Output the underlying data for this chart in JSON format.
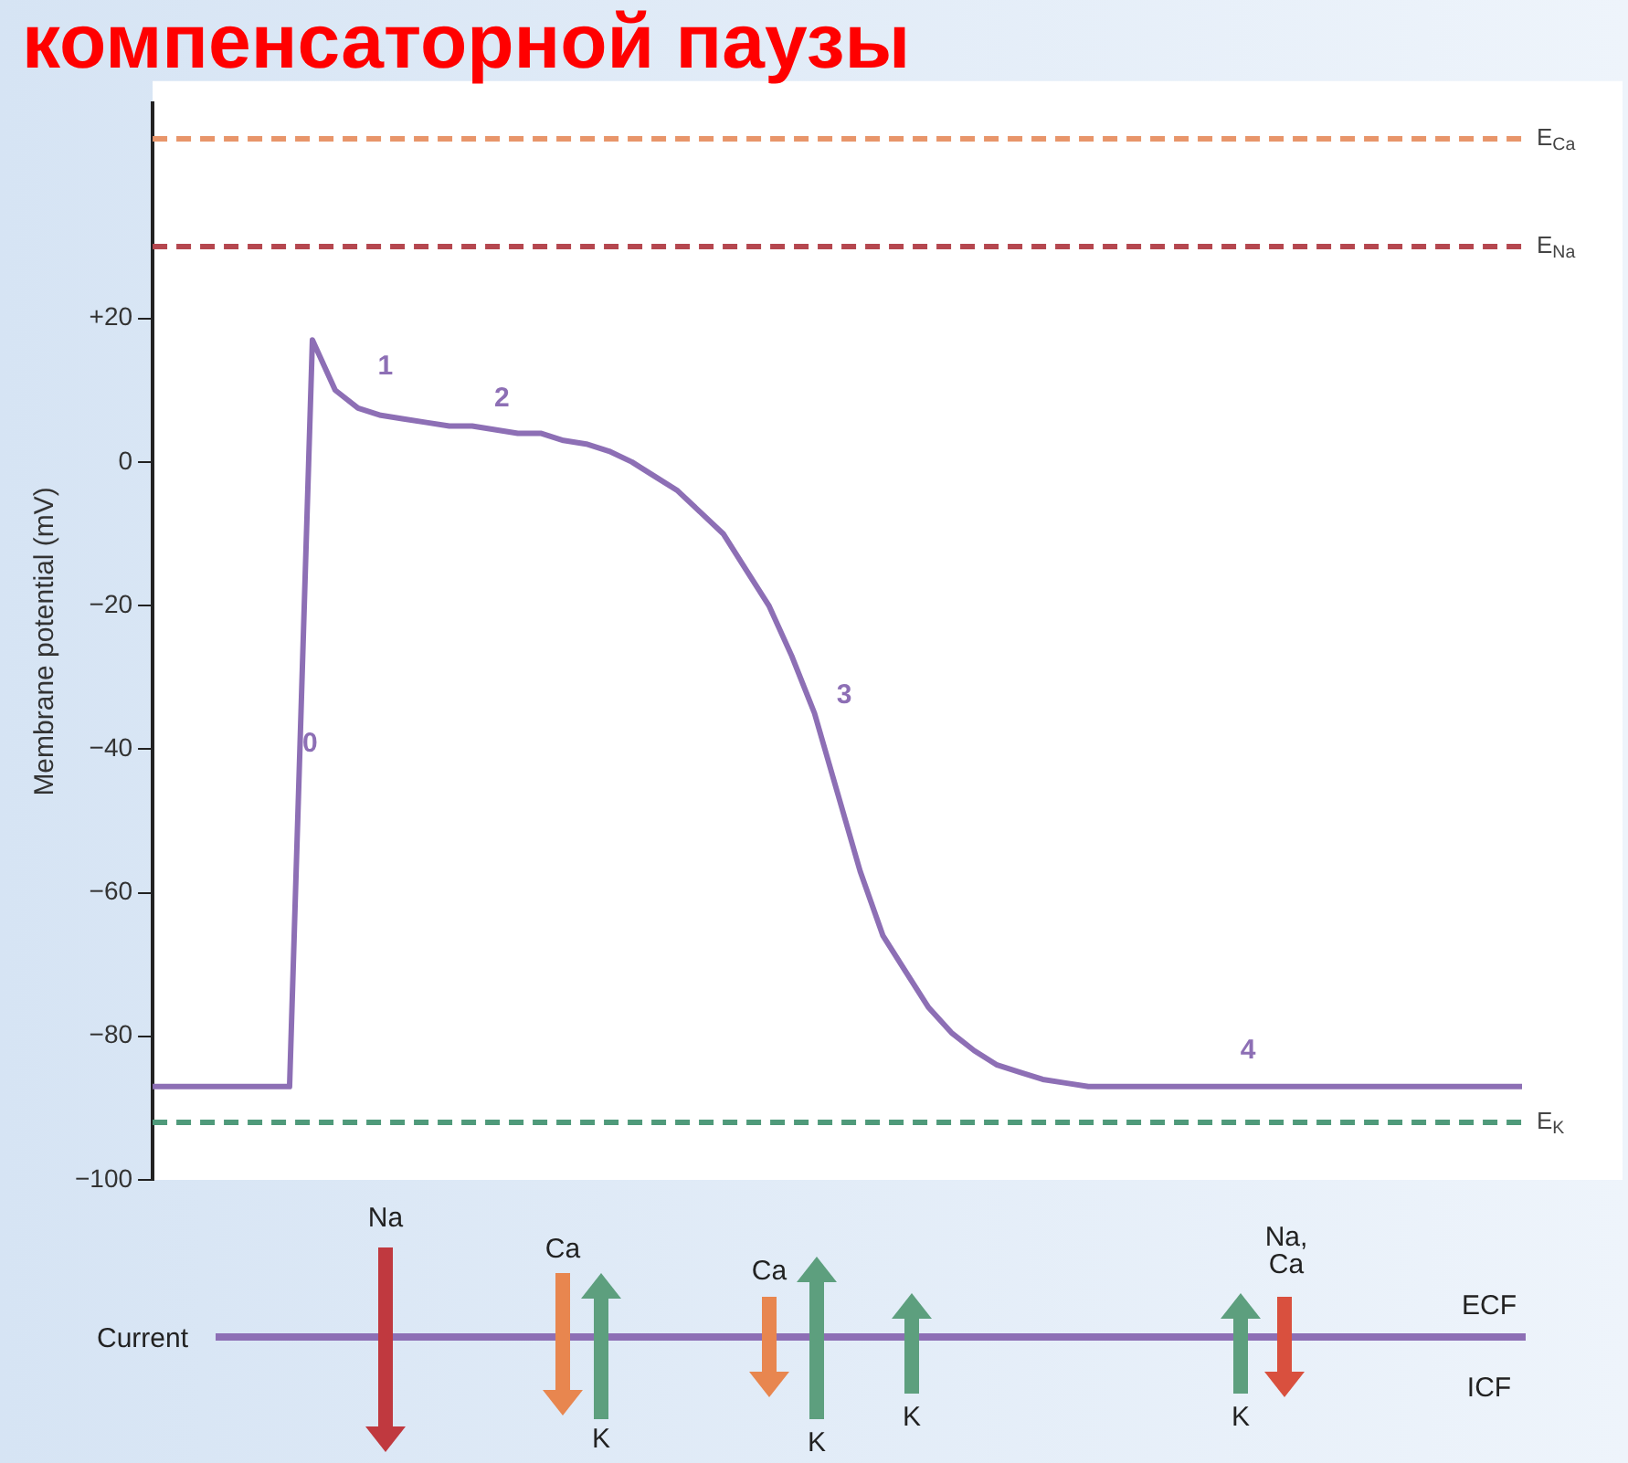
{
  "chart_data": {
    "type": "line",
    "title": "компенсаторной паузы",
    "ylabel": "Membrane potential (mV)",
    "categories": [
      null,
      null,
      null,
      null,
      null,
      null,
      null,
      null,
      null,
      null,
      null,
      null,
      null,
      null,
      null,
      null,
      null,
      null,
      null,
      null,
      null,
      null,
      null,
      null,
      null,
      null,
      null,
      null,
      null,
      null,
      null,
      null,
      null,
      null,
      null,
      null,
      null,
      null,
      null,
      null,
      null,
      null,
      null,
      null,
      null,
      null,
      null,
      null,
      null,
      null,
      null,
      null,
      null,
      null,
      null,
      null,
      null,
      null,
      null,
      null,
      null
    ],
    "series": [
      {
        "color": "#8d6fb5",
        "values": [
          -87,
          -87,
          -87,
          -87,
          -87,
          -87,
          -87,
          17,
          10,
          7.5,
          6.5,
          6,
          5.5,
          5,
          5,
          4.5,
          4,
          4,
          3,
          2.5,
          1.5,
          0,
          -2,
          -4,
          -7,
          -10,
          -15,
          -20,
          -27,
          -35,
          -46,
          -57,
          -66,
          -71,
          -76,
          -79.5,
          -82,
          -84,
          -85,
          -86,
          -86.5,
          -87,
          -87,
          -87,
          -87,
          -87,
          -87,
          -87,
          -87,
          -87,
          -87,
          -87,
          -87,
          -87,
          -87,
          -87,
          -87,
          -87,
          -87,
          -87,
          -87
        ]
      }
    ],
    "ylim": [
      -100,
      50
    ],
    "yticks": [
      {
        "value": -100,
        "label": "−100"
      },
      {
        "value": -80,
        "label": "−80"
      },
      {
        "value": -60,
        "label": "−60"
      },
      {
        "value": -40,
        "label": "−40"
      },
      {
        "value": -20,
        "label": "−20"
      },
      0,
      {
        "value": 20,
        "label": "+20"
      }
    ],
    "tick_labels": "y",
    "grid": false,
    "legend": false,
    "marker": "none",
    "line_style": "solid",
    "ref_lines": [
      {
        "axis": "y",
        "value": 45,
        "label": "E$_{Ca}$",
        "color": "#e8956a",
        "line_style": "dashed"
      },
      {
        "axis": "y",
        "value": 30,
        "label": "E$_{Na}$",
        "color": "#b5474f",
        "line_style": "dashed"
      },
      {
        "axis": "y",
        "value": -92,
        "label": "E$_{K}$",
        "color": "#4f9a7a",
        "line_style": "dashed"
      }
    ],
    "annotations": [
      "0",
      "1",
      "2",
      "3",
      "4",
      "Current",
      "Na",
      "Ca",
      "K",
      "Ca",
      "K",
      "K",
      "K",
      "Na, Ca",
      "ECF",
      "ICF"
    ]
  }
}
